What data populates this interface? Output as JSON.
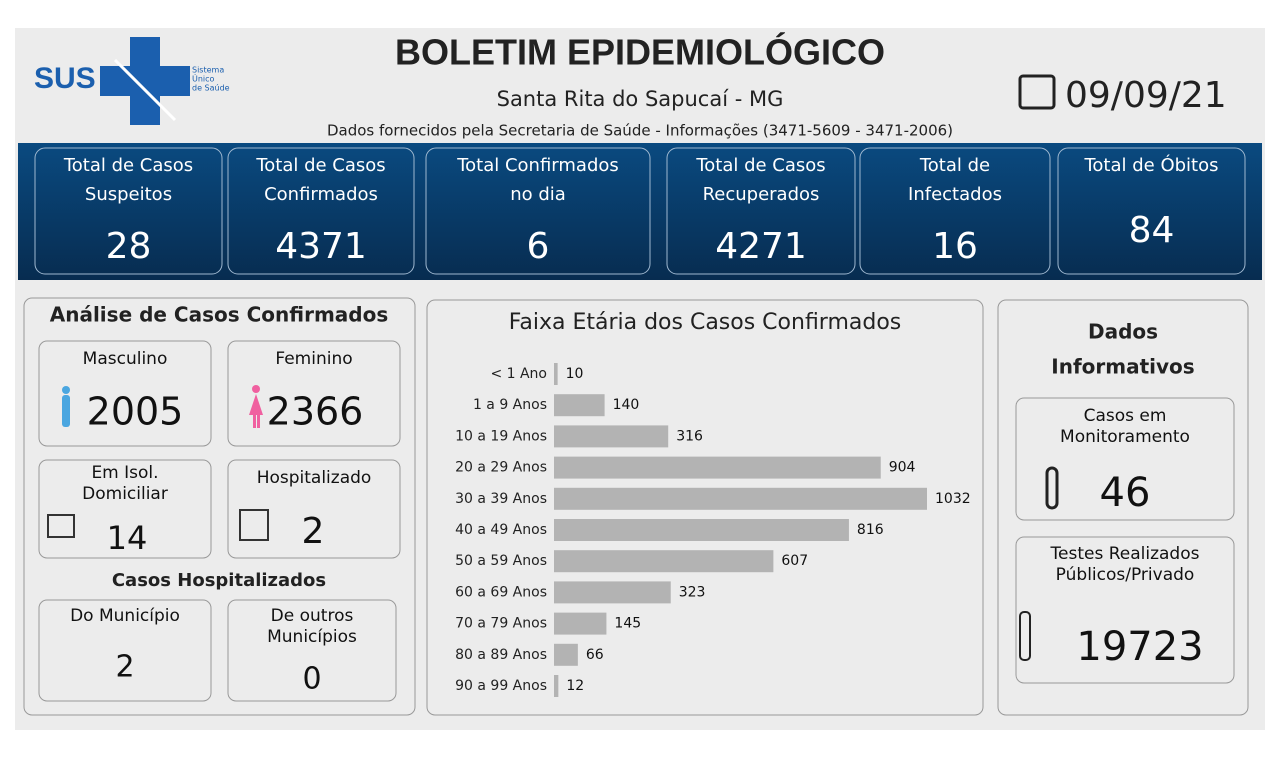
{
  "header": {
    "title": "BOLETIM EPIDEMIOLÓGICO",
    "city": "Santa Rita do Sapucaí - MG",
    "source": "Dados fornecidos pela Secretaria de Saúde - Informações (3471-5609 - 3471-2006)",
    "date": "09/09/21",
    "logo": {
      "text": "SUS",
      "lines": [
        "Sistema",
        "Único",
        "de Saúde"
      ]
    }
  },
  "kpis": [
    {
      "label": [
        "Total de Casos",
        "Suspeitos"
      ],
      "value": 28
    },
    {
      "label": [
        "Total de Casos",
        "Confirmados"
      ],
      "value": 4371
    },
    {
      "label": [
        "Total Confirmados",
        "no dia"
      ],
      "value": 6
    },
    {
      "label": [
        "Total de Casos",
        "Recuperados"
      ],
      "value": 4271
    },
    {
      "label": [
        "Total de",
        "Infectados"
      ],
      "value": 16
    },
    {
      "label": [
        "Total de Óbitos"
      ],
      "value": 84
    }
  ],
  "analysis": {
    "title": "Análise de Casos Confirmados",
    "male": {
      "label": [
        "Masculino"
      ],
      "value": 2005
    },
    "female": {
      "label": [
        "Feminino"
      ],
      "value": 2366
    },
    "isolation": {
      "label": [
        "Em Isol.",
        "Domiciliar"
      ],
      "value": 14
    },
    "hospitalized": {
      "label": [
        "Hospitalizado"
      ],
      "value": 2
    },
    "hospital_title": "Casos Hospitalizados",
    "municipality": {
      "label": [
        "Do Município"
      ],
      "value": 2
    },
    "others": {
      "label": [
        "De outros",
        "Municípios"
      ],
      "value": 0
    }
  },
  "info": {
    "title": [
      "Dados",
      "Informativos"
    ],
    "monitoring": {
      "label": [
        "Casos em",
        "Monitoramento"
      ],
      "value": 46
    },
    "tests": {
      "label": [
        "Testes Realizados",
        "Públicos/Privado"
      ],
      "value": 19723
    }
  },
  "chart_data": {
    "type": "bar",
    "orientation": "horizontal",
    "title": "Faixa Etária dos Casos Confirmados",
    "categories": [
      "< 1 Ano",
      "1 a 9 Anos",
      "10 a 19 Anos",
      "20 a 29 Anos",
      "30 a 39 Anos",
      "40 a 49 Anos",
      "50 a 59 Anos",
      "60 a 69 Anos",
      "70 a 79 Anos",
      "80 a 89 Anos",
      "90 a 99 Anos"
    ],
    "values": [
      10,
      140,
      316,
      904,
      1032,
      816,
      607,
      323,
      145,
      66,
      12
    ],
    "color": "#b3b3b3"
  }
}
